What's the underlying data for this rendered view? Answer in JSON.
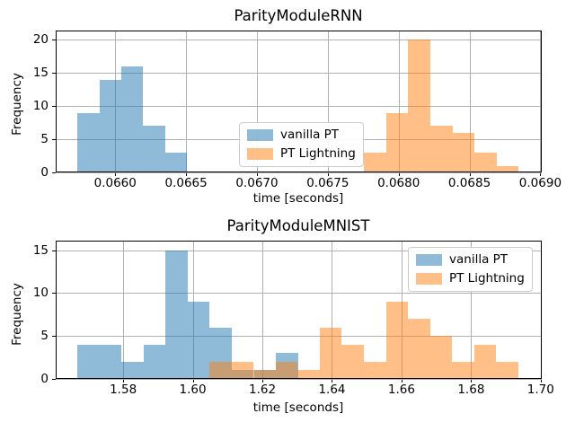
{
  "figure": {
    "background": "#ffffff",
    "grid_color": "#b0b0b0",
    "spine_color": "#000000",
    "blue": "#1f77b4",
    "orange": "#ff7f0e",
    "fill_alpha": 0.5,
    "legend_border": "#cccccc"
  },
  "legend": {
    "items": [
      {
        "label": "vanilla PT",
        "color": "#1f77b4"
      },
      {
        "label": "PT Lightning",
        "color": "#ff7f0e"
      }
    ]
  },
  "chart_data": [
    {
      "type": "bar",
      "subtype": "histogram",
      "title": "ParityModuleRNN",
      "xlabel": "time [seconds]",
      "ylabel": "Frequency",
      "xlim": [
        0.06558,
        0.06901
      ],
      "ylim": [
        0,
        21.4
      ],
      "xticks": {
        "values": [
          0.066,
          0.0665,
          0.067,
          0.0675,
          0.068,
          0.0685,
          0.069
        ],
        "labels": [
          "0.0660",
          "0.0665",
          "0.0670",
          "0.0675",
          "0.0680",
          "0.0685",
          "0.0690"
        ]
      },
      "yticks": {
        "values": [
          0,
          5,
          10,
          15,
          20
        ],
        "labels": [
          "0",
          "5",
          "10",
          "15",
          "20"
        ]
      },
      "grid": true,
      "legend_position": "center",
      "series": [
        {
          "name": "vanilla PT",
          "color": "#1f77b4",
          "bin_start": 0.065735,
          "bin_width": 0.000154,
          "counts": [
            9,
            14,
            16,
            7,
            3
          ]
        },
        {
          "name": "PT Lightning",
          "color": "#ff7f0e",
          "bin_start": 0.067757,
          "bin_width": 0.0001557,
          "counts": [
            3,
            9,
            20,
            7,
            6,
            3,
            1
          ]
        }
      ]
    },
    {
      "type": "bar",
      "subtype": "histogram",
      "title": "ParityModuleMNIST",
      "xlabel": "time [seconds]",
      "ylabel": "Frequency",
      "xlim": [
        1.5606,
        1.7003
      ],
      "ylim": [
        0,
        16.1
      ],
      "xticks": {
        "values": [
          1.58,
          1.6,
          1.62,
          1.64,
          1.66,
          1.68,
          1.7
        ],
        "labels": [
          "1.58",
          "1.60",
          "1.62",
          "1.64",
          "1.66",
          "1.68",
          "1.70"
        ]
      },
      "yticks": {
        "values": [
          0,
          5,
          10,
          15
        ],
        "labels": [
          "0",
          "5",
          "10",
          "15"
        ]
      },
      "grid": true,
      "legend_position": "upper right",
      "series": [
        {
          "name": "vanilla PT",
          "color": "#1f77b4",
          "bin_start": 1.5669,
          "bin_width": 0.00633,
          "counts": [
            4,
            4,
            2,
            4,
            15,
            9,
            6,
            1,
            1,
            3
          ]
        },
        {
          "name": "PT Lightning",
          "color": "#ff7f0e",
          "bin_start": 1.6048,
          "bin_width": 0.00634,
          "counts": [
            2,
            2,
            1,
            2,
            1,
            6,
            4,
            2,
            9,
            7,
            5,
            2,
            4,
            2
          ]
        }
      ]
    }
  ]
}
